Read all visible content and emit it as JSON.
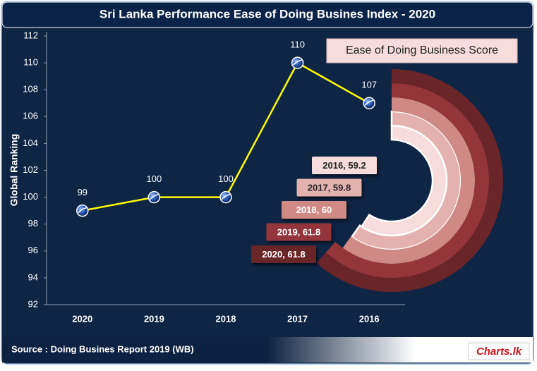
{
  "header": {
    "title": "Sri Lanka Performance Ease of Doing Busines Index - 2020"
  },
  "chart_data": [
    {
      "type": "line",
      "y_label": "Global Ranking",
      "categories": [
        "2020",
        "2019",
        "2018",
        "2017",
        "2016"
      ],
      "values": [
        99,
        100,
        100,
        110,
        107
      ],
      "color": "#ffff00",
      "marker_color": "#1f4fa8",
      "ylim": [
        92,
        112
      ],
      "yticks": [
        92,
        94,
        96,
        98,
        100,
        102,
        104,
        106,
        108,
        110,
        112
      ]
    },
    {
      "type": "radial-bar",
      "title": "Ease of Doing Business Score",
      "categories": [
        "2016",
        "2017",
        "2018",
        "2019",
        "2020"
      ],
      "values": [
        59.2,
        59.8,
        60,
        61.8,
        61.8
      ],
      "value_labels": [
        "2016, 59.2",
        "2017, 59.8",
        "2018, 60",
        "2019, 61.8",
        "2020, 61.8"
      ],
      "colors": [
        "#f6dcdc",
        "#e3b1ae",
        "#cf8a85",
        "#94353a",
        "#6a2528"
      ],
      "xlim": [
        0,
        100
      ]
    }
  ],
  "footer": {
    "source": "Source : Doing Busines Report 2019 (WB)",
    "logo": "Charts.lk"
  }
}
